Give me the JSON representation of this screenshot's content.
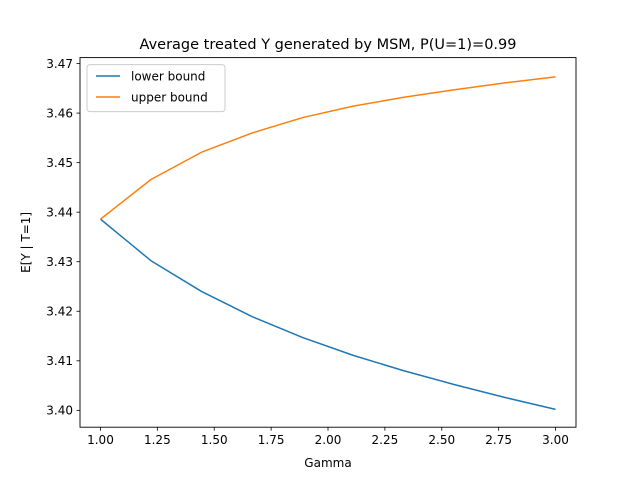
{
  "chart_data": {
    "type": "line",
    "title": "Average treated Y generated by MSM, P(U=1)=0.99",
    "xlabel": "Gamma",
    "ylabel": "E[Y | T=1]",
    "xlim": [
      0.91,
      3.09
    ],
    "ylim": [
      3.3966,
      3.4712
    ],
    "xticks": [
      1.0,
      1.25,
      1.5,
      1.75,
      2.0,
      2.25,
      2.5,
      2.75,
      3.0
    ],
    "xtick_labels": [
      "1.00",
      "1.25",
      "1.50",
      "1.75",
      "2.00",
      "2.25",
      "2.50",
      "2.75",
      "3.00"
    ],
    "yticks": [
      3.4,
      3.41,
      3.42,
      3.43,
      3.44,
      3.45,
      3.46,
      3.47
    ],
    "ytick_labels": [
      "3.40",
      "3.41",
      "3.42",
      "3.43",
      "3.44",
      "3.45",
      "3.46",
      "3.47"
    ],
    "grid": false,
    "legend": "upper-left",
    "x": [
      1.0,
      1.222,
      1.444,
      1.667,
      1.889,
      2.111,
      2.333,
      2.556,
      2.778,
      3.0
    ],
    "series": [
      {
        "name": "lower bound",
        "color": "#1f77b4",
        "values": [
          3.4386,
          3.4302,
          3.424,
          3.4189,
          3.4147,
          3.4111,
          3.408,
          3.4052,
          3.4026,
          3.4002
        ]
      },
      {
        "name": "upper bound",
        "color": "#ff7f0e",
        "values": [
          3.4386,
          3.4466,
          3.4521,
          3.456,
          3.4591,
          3.4614,
          3.4632,
          3.4647,
          3.4661,
          3.4673
        ]
      }
    ]
  }
}
